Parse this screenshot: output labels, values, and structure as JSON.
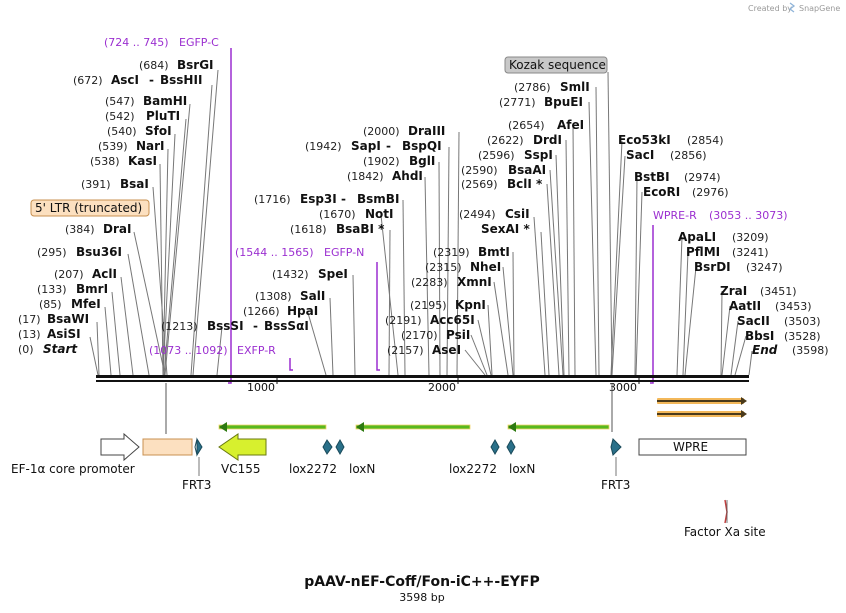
{
  "header": {
    "credit": "Created by",
    "brand": "SnapGene"
  },
  "plasmid": {
    "name": "pAAV-nEF-Coff/Fon-iC++-EYFP",
    "length_label": "3598 bp"
  },
  "ticks": [
    "1000",
    "2000",
    "3000"
  ],
  "boxed_labels": {
    "kozak": "Kozak sequence",
    "ltr": "5' LTR (truncated)"
  },
  "primers": [
    {
      "pos": "(724 .. 745)",
      "name": "EGFP-C"
    },
    {
      "pos": "(1544 .. 1565)",
      "name": "EGFP-N"
    },
    {
      "pos": "(1073 .. 1092)",
      "name": "EXFP-R"
    },
    {
      "name": "WPRE-R",
      "pos": "(3053 .. 3073)"
    }
  ],
  "enzymes": [
    {
      "pos": "(684)",
      "name": "BsrGI"
    },
    {
      "pos": "(672)",
      "name": "AscI",
      "sep": "-",
      "name2": "BssHII"
    },
    {
      "pos": "(547)",
      "name": "BamHI"
    },
    {
      "pos": "(542)",
      "name": "PluTI"
    },
    {
      "pos": "(540)",
      "name": "SfoI"
    },
    {
      "pos": "(539)",
      "name": "NarI"
    },
    {
      "pos": "(538)",
      "name": "KasI"
    },
    {
      "pos": "(391)",
      "name": "BsaI"
    },
    {
      "pos": "(384)",
      "name": "DraI"
    },
    {
      "pos": "(295)",
      "name": "Bsu36I"
    },
    {
      "pos": "(207)",
      "name": "AclI"
    },
    {
      "pos": "(133)",
      "name": "BmrI"
    },
    {
      "pos": "(85)",
      "name": "MfeI"
    },
    {
      "pos": "(17)",
      "name": "BsaWI"
    },
    {
      "pos": "(13)",
      "name": "AsiSI"
    },
    {
      "pos": "(0)",
      "name": "Start"
    },
    {
      "pos": "(1213)",
      "name": "BssSI",
      "sep": "-",
      "name2": "BssSαI"
    },
    {
      "pos": "(1266)",
      "name": "HpaI"
    },
    {
      "pos": "(1308)",
      "name": "SalI"
    },
    {
      "pos": "(1432)",
      "name": "SpeI"
    },
    {
      "pos": "(1618)",
      "name": "BsaBI *"
    },
    {
      "pos": "(1670)",
      "name": "NotI"
    },
    {
      "pos": "(1716)",
      "name": "Esp3I",
      "sep": "-",
      "name2": "BsmBI"
    },
    {
      "pos": "(1842)",
      "name": "AhdI"
    },
    {
      "pos": "(1902)",
      "name": "BglI"
    },
    {
      "pos": "(1942)",
      "name": "SapI",
      "sep": "-",
      "name2": "BspQI"
    },
    {
      "pos": "(2000)",
      "name": "DraIII"
    },
    {
      "pos": "(2157)",
      "name": "AseI"
    },
    {
      "pos": "(2170)",
      "name": "PsiI"
    },
    {
      "pos": "(2191)",
      "name": "Acc65I"
    },
    {
      "pos": "(2195)",
      "name": "KpnI"
    },
    {
      "pos": "(2283)",
      "name": "XmnI"
    },
    {
      "pos": "(2315)",
      "name": "NheI"
    },
    {
      "pos": "(2319)",
      "name": "BmtI"
    },
    {
      "pos": "(2494)",
      "name": "CsiI"
    },
    {
      "name": "SexAI *"
    },
    {
      "pos": "(2569)",
      "name": "BclI *"
    },
    {
      "pos": "(2590)",
      "name": "BsaAI"
    },
    {
      "pos": "(2596)",
      "name": "SspI"
    },
    {
      "pos": "(2622)",
      "name": "DrdI"
    },
    {
      "pos": "(2654)",
      "name": "AfeI"
    },
    {
      "pos": "(2771)",
      "name": "BpuEI"
    },
    {
      "pos": "(2786)",
      "name": "SmlI"
    },
    {
      "name": "Eco53kI",
      "pos": "(2854)"
    },
    {
      "name": "SacI",
      "pos": "(2856)"
    },
    {
      "name": "BstBI",
      "pos": "(2974)"
    },
    {
      "name": "EcoRI",
      "pos": "(2976)"
    },
    {
      "name": "ApaLI",
      "pos": "(3209)"
    },
    {
      "name": "PflMI",
      "pos": "(3241)"
    },
    {
      "name": "BsrDI",
      "pos": "(3247)"
    },
    {
      "name": "ZraI",
      "pos": "(3451)"
    },
    {
      "name": "AatII",
      "pos": "(3453)"
    },
    {
      "name": "SacII",
      "pos": "(3503)"
    },
    {
      "name": "BbsI",
      "pos": "(3528)"
    },
    {
      "name": "End",
      "pos": "(3598)"
    }
  ],
  "features": [
    "EF-1α core promoter",
    "VC155",
    "FRT3",
    "lox2272",
    "loxN",
    "lox2272",
    "loxN",
    "FRT3",
    "WPRE",
    "Factor Xa site"
  ],
  "colors": {
    "primer": "#9b2fd0",
    "ltr_fill": "#fce0c0",
    "vc155_fill": "#d7f02e",
    "arrow_green": "#58b81e",
    "frt_fill": "#2a7089",
    "orange_box": "#f3b85a",
    "kozak_fill": "#c8c8c8"
  },
  "icons": [
    "snapgene-logo-icon"
  ]
}
